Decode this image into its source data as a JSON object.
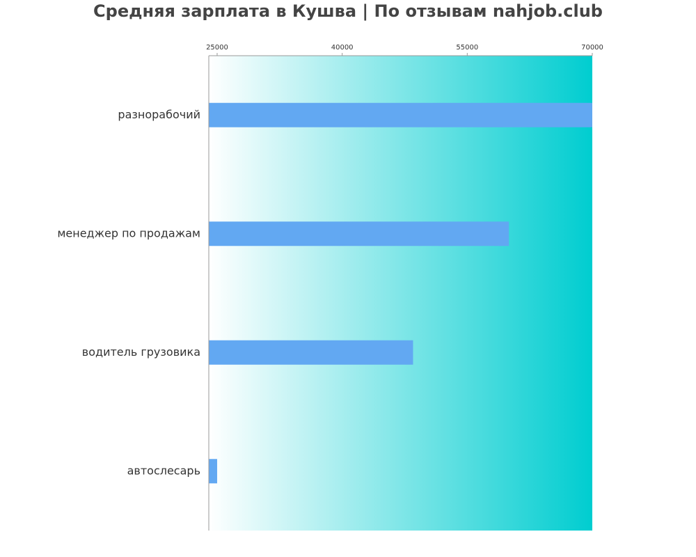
{
  "chart_data": {
    "type": "bar",
    "orientation": "horizontal",
    "title": "Средняя зарплата в Кушва | По отзывам nahjob.club",
    "xlabel": "",
    "ylabel": "",
    "xlim": [
      24000,
      70000
    ],
    "x_ticks": [
      25000,
      40000,
      55000,
      70000
    ],
    "x_tick_labels": [
      "25000",
      "40000",
      "55000",
      "70000"
    ],
    "x_axis_position": "top",
    "categories": [
      "разнорабочий",
      "менеджер по продажам",
      "водитель грузовика",
      "автослесарь"
    ],
    "values": [
      70000,
      60000,
      48500,
      25000
    ],
    "grid": false,
    "legend": "none",
    "colors": {
      "bar": "#62a8f2",
      "background_gradient_start": "#ffffff",
      "background_gradient_end": "#00cdd0",
      "axis": "#999999",
      "title": "#444444",
      "text": "#333333"
    }
  }
}
